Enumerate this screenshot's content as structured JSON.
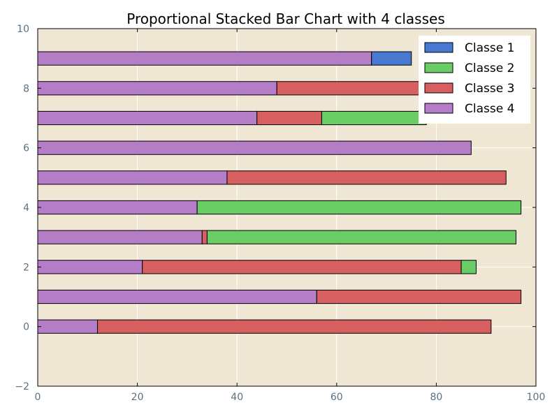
{
  "chart_data": {
    "type": "bar",
    "orientation": "horizontal",
    "stacked": true,
    "title": "Proportional Stacked Bar Chart with 4 classes",
    "xlabel": "",
    "ylabel": "",
    "xlim": [
      0,
      100
    ],
    "ylim": [
      -2,
      10
    ],
    "xticks": [
      "0",
      "20",
      "40",
      "60",
      "80",
      "100"
    ],
    "yticks": [
      "−2",
      "0",
      "2",
      "4",
      "6",
      "8",
      "10"
    ],
    "grid": true,
    "legend_position": "top-right",
    "categories": [
      0,
      1,
      2,
      3,
      4,
      5,
      6,
      7,
      8,
      9
    ],
    "series": [
      {
        "name": "Classe 4",
        "color": "#b57cc8",
        "values": [
          12,
          56,
          21,
          33,
          32,
          38,
          87,
          44,
          48,
          67
        ]
      },
      {
        "name": "Classe 3",
        "color": "#d75f5f",
        "values": [
          79,
          41,
          64,
          1,
          0,
          56,
          0,
          13,
          29,
          0
        ]
      },
      {
        "name": "Classe 2",
        "color": "#6acc64",
        "values": [
          0,
          0,
          3,
          62,
          65,
          0,
          0,
          21,
          0,
          0
        ]
      },
      {
        "name": "Classe 1",
        "color": "#4878d0",
        "values": [
          0,
          0,
          0,
          0,
          0,
          0,
          0,
          0,
          0,
          8
        ]
      }
    ],
    "legend_order": [
      "Classe 1",
      "Classe 2",
      "Classe 3",
      "Classe 4"
    ],
    "plot_background": "#efe6d4",
    "grid_color": "#ffffff"
  }
}
